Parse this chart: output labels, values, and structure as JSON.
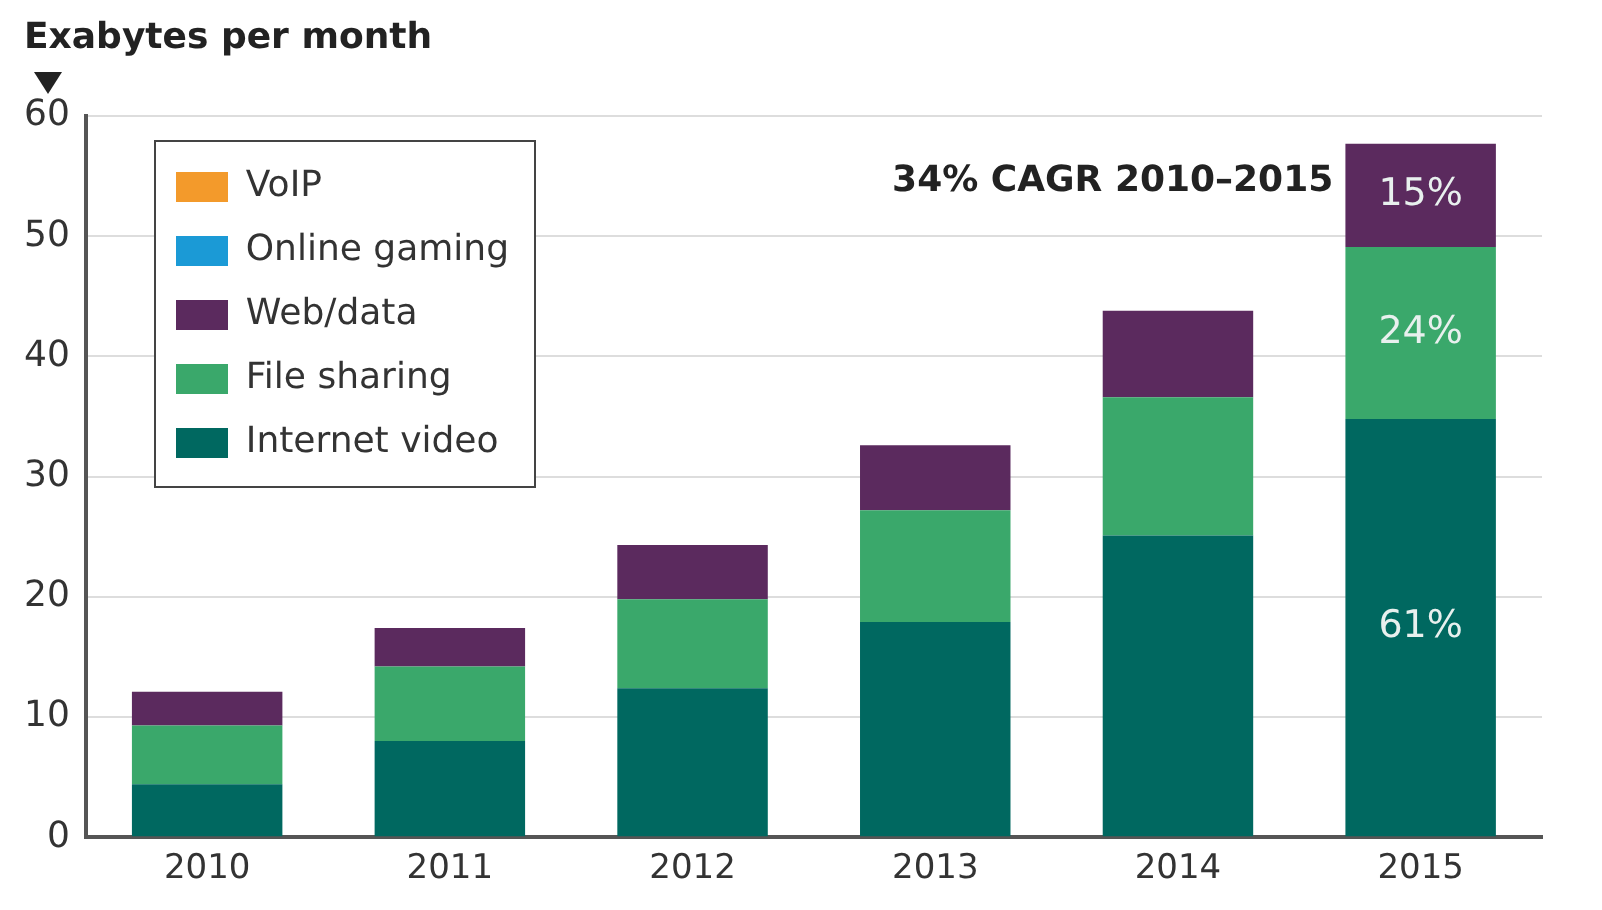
{
  "chart_data": {
    "type": "bar",
    "stacked": true,
    "ylabel": "Exabytes per month",
    "annotations": [
      "34% CAGR 2010–2015",
      "61%",
      "24%",
      "15%"
    ],
    "categories": [
      "2010",
      "2011",
      "2012",
      "2013",
      "2014",
      "2015"
    ],
    "series": [
      {
        "name": "Internet video",
        "color": "#006860",
        "values": [
          4.4,
          8.0,
          12.4,
          17.9,
          25.1,
          34.8
        ]
      },
      {
        "name": "File sharing",
        "color": "#3aa86b",
        "values": [
          4.9,
          6.2,
          7.4,
          9.3,
          11.5,
          14.3
        ]
      },
      {
        "name": "Web/data",
        "color": "#5b2a5e",
        "values": [
          2.8,
          3.2,
          4.5,
          5.4,
          7.2,
          8.6
        ]
      },
      {
        "name": "Online gaming",
        "color": "#1b9ad6",
        "values": [
          null,
          null,
          null,
          null,
          null,
          null
        ]
      },
      {
        "name": "VoIP",
        "color": "#f39a2b",
        "values": [
          null,
          null,
          null,
          null,
          null,
          null
        ]
      }
    ],
    "ylim": [
      0,
      60
    ],
    "yticks": [
      0,
      10,
      20,
      30,
      40,
      50,
      60
    ],
    "grid": "y",
    "legend": "top left"
  }
}
